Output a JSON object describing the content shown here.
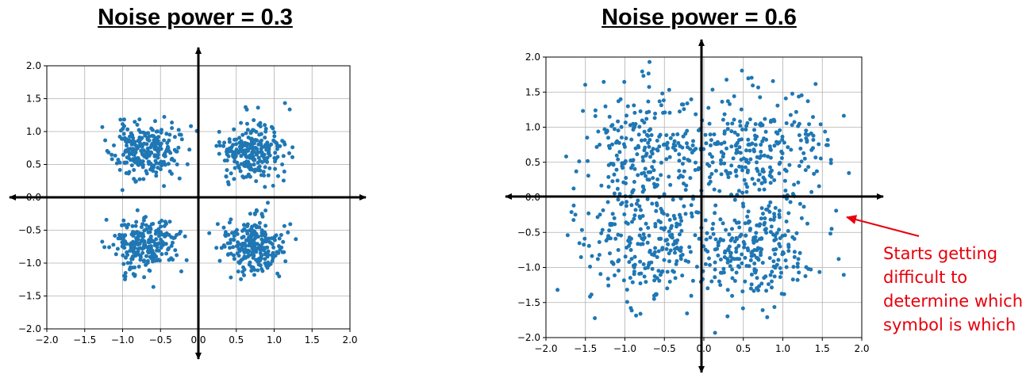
{
  "titles": {
    "left": "Noise power = 0.3",
    "right": "Noise power = 0.6"
  },
  "annotation": {
    "lines": [
      "Starts getting",
      "difficult to",
      "determine which",
      "symbol is which"
    ],
    "color": "#e8000b"
  },
  "colors": {
    "points": "#1f77b4",
    "grid": "#b0b0b0",
    "axes": "#000000"
  },
  "chart_data": [
    {
      "type": "scatter",
      "title": "Noise power = 0.3",
      "xlim": [
        -2.0,
        2.0
      ],
      "ylim": [
        -2.0,
        2.0
      ],
      "xticks": [
        "−2.0",
        "−1.5",
        "−1.0",
        "−0.5",
        "0.0",
        "0.5",
        "1.0",
        "1.5",
        "2.0"
      ],
      "yticks": [
        "−2.0",
        "−1.5",
        "−1.0",
        "−0.5",
        "0.0",
        "0.5",
        "1.0",
        "1.5",
        "2.0"
      ],
      "grid": true,
      "clusters": [
        {
          "center": [
            -0.707,
            0.707
          ],
          "spread": 0.21,
          "count": 250
        },
        {
          "center": [
            0.707,
            0.707
          ],
          "spread": 0.21,
          "count": 250
        },
        {
          "center": [
            -0.707,
            -0.707
          ],
          "spread": 0.21,
          "count": 250
        },
        {
          "center": [
            0.707,
            -0.707
          ],
          "spread": 0.21,
          "count": 250
        }
      ]
    },
    {
      "type": "scatter",
      "title": "Noise power = 0.6",
      "xlim": [
        -2.0,
        2.0
      ],
      "ylim": [
        -2.0,
        2.0
      ],
      "xticks": [
        "−2.0",
        "−1.5",
        "−1.0",
        "−0.5",
        "0.0",
        "0.5",
        "1.0",
        "1.5",
        "2.0"
      ],
      "yticks": [
        "−2.0",
        "−1.5",
        "−1.0",
        "−0.5",
        "0.0",
        "0.5",
        "1.0",
        "1.5",
        "2.0"
      ],
      "grid": true,
      "clusters": [
        {
          "center": [
            -0.707,
            0.707
          ],
          "spread": 0.42,
          "count": 250
        },
        {
          "center": [
            0.707,
            0.707
          ],
          "spread": 0.42,
          "count": 250
        },
        {
          "center": [
            -0.707,
            -0.707
          ],
          "spread": 0.42,
          "count": 250
        },
        {
          "center": [
            0.707,
            -0.707
          ],
          "spread": 0.42,
          "count": 250
        }
      ]
    }
  ]
}
